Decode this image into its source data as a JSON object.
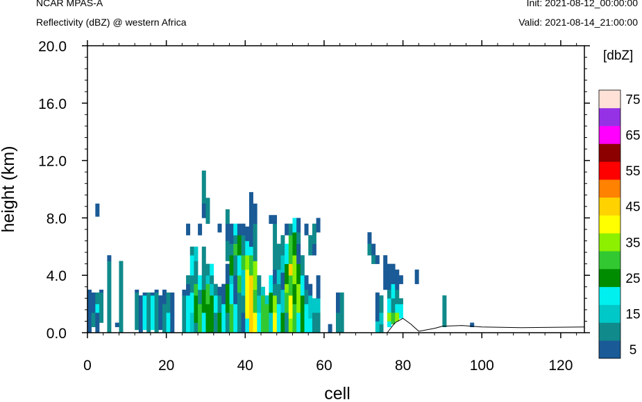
{
  "header": {
    "model": "NCAR MPAS-A",
    "subtitle": "Reflectivity (dBZ) @ western Africa",
    "init": "Init: 2021-08-12_00:00:00",
    "valid": "Valid: 2021-08-14_21:00:00"
  },
  "chart_data": {
    "type": "heatmap",
    "xlabel": "cell",
    "ylabel": "height (km)",
    "xlim": [
      0,
      126
    ],
    "ylim": [
      0,
      20
    ],
    "xticks": [
      "0",
      "20",
      "40",
      "60",
      "80",
      "100",
      "120"
    ],
    "yticks": [
      "0.0",
      "4.0",
      "8.0",
      "12.0",
      "16.0",
      "20.0"
    ],
    "colorbar": {
      "unit": "[dbZ]",
      "levels": [
        5,
        10,
        15,
        20,
        25,
        30,
        35,
        40,
        45,
        50,
        55,
        60,
        65,
        70,
        75
      ],
      "labels": [
        "5",
        "15",
        "25",
        "35",
        "45",
        "55",
        "65",
        "75"
      ],
      "colors": [
        "#1a5a96",
        "#108a8a",
        "#00c8c8",
        "#00f0f0",
        "#008c00",
        "#32c832",
        "#8cf000",
        "#ffff00",
        "#ffd200",
        "#ff8200",
        "#ff0000",
        "#8c0000",
        "#ff00ff",
        "#9632e6",
        "#ffe1d7"
      ]
    },
    "column_cell_width_km": 1,
    "cells": [
      [
        0,
        0.0,
        0.4,
        5
      ],
      [
        0,
        0.4,
        2.8,
        5
      ],
      [
        0,
        2.8,
        3.0,
        5
      ],
      [
        1,
        0.4,
        1.4,
        10
      ],
      [
        1,
        1.4,
        2.8,
        5
      ],
      [
        2,
        0.0,
        0.7,
        5
      ],
      [
        2,
        0.7,
        1.4,
        5
      ],
      [
        2,
        1.4,
        2.0,
        20
      ],
      [
        2,
        2.0,
        2.8,
        10
      ],
      [
        2,
        8.1,
        9.0,
        5
      ],
      [
        3,
        0.7,
        2.8,
        10
      ],
      [
        3,
        2.8,
        3.0,
        5
      ],
      [
        5,
        0.0,
        2.8,
        10
      ],
      [
        5,
        2.8,
        5.0,
        10
      ],
      [
        5,
        5.0,
        5.4,
        5
      ],
      [
        7,
        0.4,
        0.7,
        5
      ],
      [
        8,
        0.0,
        5.0,
        10
      ],
      [
        12,
        0.2,
        2.8,
        10
      ],
      [
        12,
        2.8,
        3.0,
        5
      ],
      [
        13,
        0.0,
        2.6,
        5
      ],
      [
        14,
        0.2,
        2.6,
        20
      ],
      [
        14,
        2.6,
        2.8,
        5
      ],
      [
        15,
        0.0,
        2.8,
        10
      ],
      [
        16,
        0.2,
        2.6,
        20
      ],
      [
        16,
        2.6,
        2.8,
        5
      ],
      [
        17,
        0.0,
        2.8,
        10
      ],
      [
        17,
        2.8,
        3.0,
        5
      ],
      [
        18,
        0.2,
        2.6,
        5
      ],
      [
        19,
        0.0,
        2.0,
        10
      ],
      [
        19,
        2.0,
        3.0,
        5
      ],
      [
        20,
        0.0,
        1.4,
        20
      ],
      [
        20,
        1.4,
        2.8,
        10
      ],
      [
        21,
        0.0,
        2.8,
        5
      ],
      [
        24,
        0.0,
        2.6,
        10
      ],
      [
        24,
        2.6,
        3.0,
        5
      ],
      [
        25,
        0.0,
        2.6,
        20
      ],
      [
        25,
        2.6,
        3.4,
        5
      ],
      [
        25,
        3.4,
        4.0,
        10
      ],
      [
        25,
        6.8,
        7.6,
        5
      ],
      [
        26,
        0.0,
        1.4,
        15
      ],
      [
        26,
        1.4,
        2.8,
        20
      ],
      [
        26,
        2.8,
        4.0,
        10
      ],
      [
        26,
        4.0,
        5.4,
        20
      ],
      [
        26,
        5.4,
        6.0,
        10
      ],
      [
        27,
        0.0,
        0.7,
        10
      ],
      [
        27,
        0.7,
        2.6,
        25
      ],
      [
        27,
        2.6,
        3.4,
        30
      ],
      [
        27,
        3.4,
        5.0,
        10
      ],
      [
        27,
        5.0,
        6.0,
        15
      ],
      [
        28,
        0.0,
        2.0,
        30
      ],
      [
        28,
        2.0,
        3.0,
        10
      ],
      [
        28,
        3.0,
        4.0,
        20
      ],
      [
        28,
        6.8,
        7.6,
        5
      ],
      [
        29,
        0.0,
        1.4,
        20
      ],
      [
        29,
        1.4,
        3.0,
        25
      ],
      [
        29,
        3.0,
        4.0,
        10
      ],
      [
        29,
        4.0,
        6.0,
        10
      ],
      [
        29,
        9.0,
        11.3,
        10
      ],
      [
        29,
        8.0,
        9.0,
        5
      ],
      [
        30,
        0.0,
        2.0,
        25
      ],
      [
        30,
        2.0,
        3.4,
        30
      ],
      [
        30,
        3.4,
        4.0,
        15
      ],
      [
        30,
        4.0,
        4.8,
        10
      ],
      [
        30,
        7.6,
        9.4,
        10
      ],
      [
        31,
        0.0,
        2.6,
        25
      ],
      [
        31,
        2.6,
        3.4,
        15
      ],
      [
        31,
        3.4,
        4.0,
        10
      ],
      [
        31,
        4.0,
        4.8,
        20
      ],
      [
        32,
        0.0,
        1.4,
        10
      ],
      [
        32,
        1.4,
        2.6,
        20
      ],
      [
        32,
        2.6,
        3.4,
        10
      ],
      [
        33,
        0.0,
        1.4,
        25
      ],
      [
        33,
        1.4,
        2.6,
        10
      ],
      [
        33,
        2.6,
        3.2,
        5
      ],
      [
        33,
        7.0,
        7.6,
        5
      ],
      [
        34,
        0.0,
        2.0,
        20
      ],
      [
        34,
        2.0,
        3.4,
        5
      ],
      [
        35,
        0.0,
        1.4,
        10
      ],
      [
        35,
        1.4,
        3.4,
        25
      ],
      [
        35,
        3.4,
        4.8,
        5
      ],
      [
        35,
        6.4,
        7.6,
        5
      ],
      [
        35,
        5.0,
        6.4,
        10
      ],
      [
        35,
        7.6,
        8.6,
        10
      ],
      [
        36,
        0.0,
        2.0,
        30
      ],
      [
        36,
        2.0,
        3.4,
        20
      ],
      [
        36,
        3.4,
        4.0,
        15
      ],
      [
        36,
        4.0,
        5.4,
        25
      ],
      [
        36,
        5.4,
        6.2,
        10
      ],
      [
        36,
        6.2,
        7.6,
        5
      ],
      [
        37,
        0.0,
        2.0,
        20
      ],
      [
        37,
        2.0,
        4.0,
        5
      ],
      [
        37,
        4.0,
        5.4,
        10
      ],
      [
        37,
        5.4,
        6.2,
        30
      ],
      [
        37,
        6.2,
        6.8,
        10
      ],
      [
        37,
        6.8,
        7.6,
        20
      ],
      [
        38,
        0.0,
        2.8,
        10
      ],
      [
        38,
        2.8,
        4.0,
        30
      ],
      [
        38,
        4.0,
        5.4,
        20
      ],
      [
        38,
        5.4,
        6.8,
        25
      ],
      [
        38,
        6.8,
        7.6,
        5
      ],
      [
        39,
        0.0,
        1.4,
        5
      ],
      [
        39,
        1.4,
        2.6,
        10
      ],
      [
        39,
        2.6,
        4.4,
        15
      ],
      [
        39,
        4.4,
        5.4,
        30
      ],
      [
        39,
        5.4,
        6.8,
        10
      ],
      [
        39,
        6.8,
        7.6,
        5
      ],
      [
        40,
        0.0,
        1.0,
        20
      ],
      [
        40,
        1.0,
        4.4,
        40
      ],
      [
        40,
        4.4,
        5.4,
        35
      ],
      [
        40,
        5.4,
        6.4,
        20
      ],
      [
        40,
        6.4,
        7.4,
        5
      ],
      [
        41,
        0.0,
        2.0,
        45
      ],
      [
        41,
        2.0,
        4.0,
        45
      ],
      [
        41,
        4.0,
        5.4,
        30
      ],
      [
        41,
        5.4,
        6.0,
        20
      ],
      [
        41,
        6.0,
        9.8,
        5
      ],
      [
        42,
        0.0,
        1.4,
        40
      ],
      [
        42,
        1.4,
        3.0,
        30
      ],
      [
        42,
        3.0,
        5.0,
        35
      ],
      [
        42,
        5.0,
        7.6,
        10
      ],
      [
        42,
        7.6,
        9.0,
        5
      ],
      [
        43,
        0.0,
        1.4,
        20
      ],
      [
        43,
        1.4,
        2.6,
        15
      ],
      [
        43,
        2.6,
        4.0,
        10
      ],
      [
        44,
        0.0,
        2.6,
        30
      ],
      [
        44,
        2.6,
        3.2,
        15
      ],
      [
        45,
        0.0,
        2.0,
        30
      ],
      [
        45,
        2.0,
        2.6,
        15
      ],
      [
        46,
        0.0,
        1.4,
        15
      ],
      [
        46,
        1.4,
        2.8,
        25
      ],
      [
        46,
        2.8,
        4.0,
        20
      ],
      [
        46,
        7.6,
        8.2,
        5
      ],
      [
        47,
        0.0,
        1.4,
        40
      ],
      [
        47,
        1.4,
        2.6,
        35
      ],
      [
        47,
        2.6,
        3.4,
        10
      ],
      [
        47,
        3.4,
        4.4,
        5
      ],
      [
        47,
        4.4,
        7.6,
        10
      ],
      [
        47,
        7.6,
        8.2,
        5
      ],
      [
        48,
        0.0,
        2.0,
        20
      ],
      [
        48,
        2.0,
        3.4,
        10
      ],
      [
        48,
        3.4,
        4.4,
        15
      ],
      [
        48,
        4.4,
        6.2,
        10
      ],
      [
        49,
        0.0,
        1.4,
        25
      ],
      [
        49,
        1.4,
        3.0,
        15
      ],
      [
        49,
        3.0,
        4.2,
        5
      ],
      [
        49,
        4.2,
        5.4,
        15
      ],
      [
        49,
        5.4,
        6.8,
        10
      ],
      [
        50,
        0.0,
        1.4,
        10
      ],
      [
        50,
        1.4,
        2.8,
        30
      ],
      [
        50,
        2.8,
        3.4,
        35
      ],
      [
        50,
        3.4,
        4.8,
        25
      ],
      [
        50,
        4.8,
        6.2,
        20
      ],
      [
        50,
        6.8,
        7.6,
        5
      ],
      [
        51,
        0.0,
        1.0,
        35
      ],
      [
        51,
        1.0,
        2.6,
        40
      ],
      [
        51,
        2.6,
        4.0,
        30
      ],
      [
        51,
        4.0,
        4.8,
        45
      ],
      [
        51,
        4.8,
        6.8,
        30
      ],
      [
        51,
        6.8,
        7.6,
        10
      ],
      [
        52,
        0.0,
        2.0,
        30
      ],
      [
        52,
        2.0,
        3.4,
        25
      ],
      [
        52,
        3.4,
        5.4,
        35
      ],
      [
        52,
        5.4,
        7.0,
        25
      ],
      [
        52,
        7.0,
        8.0,
        20
      ],
      [
        53,
        0.0,
        1.4,
        20
      ],
      [
        53,
        1.4,
        3.4,
        35
      ],
      [
        53,
        3.4,
        4.8,
        25
      ],
      [
        53,
        4.8,
        6.2,
        5
      ],
      [
        53,
        6.2,
        7.0,
        10
      ],
      [
        53,
        7.0,
        8.0,
        5
      ],
      [
        54,
        0.0,
        1.0,
        25
      ],
      [
        54,
        1.0,
        2.6,
        25
      ],
      [
        54,
        2.6,
        4.0,
        20
      ],
      [
        54,
        4.0,
        5.4,
        10
      ],
      [
        55,
        0.0,
        2.0,
        20
      ],
      [
        55,
        2.0,
        3.0,
        10
      ],
      [
        55,
        3.0,
        4.0,
        5
      ],
      [
        55,
        6.8,
        7.6,
        5
      ],
      [
        56,
        0.0,
        1.0,
        20
      ],
      [
        56,
        1.0,
        2.6,
        15
      ],
      [
        56,
        2.6,
        3.4,
        5
      ],
      [
        56,
        5.4,
        6.8,
        10
      ],
      [
        57,
        0.0,
        1.4,
        10
      ],
      [
        57,
        1.4,
        2.4,
        15
      ],
      [
        57,
        5.4,
        6.2,
        5
      ],
      [
        57,
        6.2,
        7.6,
        10
      ],
      [
        58,
        0.0,
        1.4,
        10
      ],
      [
        58,
        1.4,
        2.4,
        15
      ],
      [
        58,
        2.4,
        4.0,
        5
      ],
      [
        58,
        7.0,
        8.0,
        5
      ],
      [
        61,
        0.0,
        0.6,
        5
      ],
      [
        63,
        0.0,
        1.4,
        10
      ],
      [
        63,
        1.4,
        2.8,
        5
      ],
      [
        64,
        0.0,
        2.8,
        10
      ],
      [
        71,
        6.2,
        7.0,
        5
      ],
      [
        71,
        5.4,
        6.2,
        10
      ],
      [
        72,
        5.4,
        6.2,
        5
      ],
      [
        72,
        4.8,
        5.4,
        10
      ],
      [
        73,
        0.0,
        0.8,
        15
      ],
      [
        73,
        0.8,
        2.8,
        5
      ],
      [
        73,
        4.8,
        5.4,
        5
      ],
      [
        74,
        0.0,
        0.6,
        10
      ],
      [
        74,
        0.6,
        1.4,
        15
      ],
      [
        74,
        1.4,
        2.6,
        10
      ],
      [
        75,
        3.0,
        4.4,
        5
      ],
      [
        75,
        4.4,
        5.4,
        5
      ],
      [
        76,
        0.4,
        0.8,
        20
      ],
      [
        76,
        0.8,
        1.4,
        35
      ],
      [
        76,
        1.4,
        2.4,
        20
      ],
      [
        76,
        2.4,
        3.0,
        10
      ],
      [
        76,
        3.0,
        4.8,
        5
      ],
      [
        77,
        0.6,
        1.4,
        30
      ],
      [
        77,
        1.4,
        2.4,
        10
      ],
      [
        77,
        2.4,
        3.4,
        20
      ],
      [
        77,
        3.4,
        4.8,
        5
      ],
      [
        78,
        0.8,
        1.4,
        35
      ],
      [
        78,
        1.4,
        2.0,
        20
      ],
      [
        78,
        2.0,
        3.0,
        10
      ],
      [
        78,
        3.0,
        4.4,
        5
      ],
      [
        79,
        1.0,
        2.0,
        20
      ],
      [
        79,
        2.0,
        2.4,
        10
      ],
      [
        79,
        3.4,
        4.0,
        5
      ],
      [
        83,
        3.4,
        4.4,
        5
      ],
      [
        90,
        1.4,
        2.6,
        10
      ],
      [
        90,
        0.4,
        1.4,
        10
      ],
      [
        97,
        0.4,
        0.7,
        5
      ]
    ],
    "terrain": [
      [
        76,
        0
      ],
      [
        78,
        0.7
      ],
      [
        80,
        1.0
      ],
      [
        82,
        0.6
      ],
      [
        84,
        0.1
      ],
      [
        86,
        0.2
      ],
      [
        88,
        0.3
      ],
      [
        90,
        0.45
      ],
      [
        95,
        0.5
      ],
      [
        100,
        0.4
      ],
      [
        110,
        0.35
      ],
      [
        126,
        0.4
      ]
    ]
  }
}
